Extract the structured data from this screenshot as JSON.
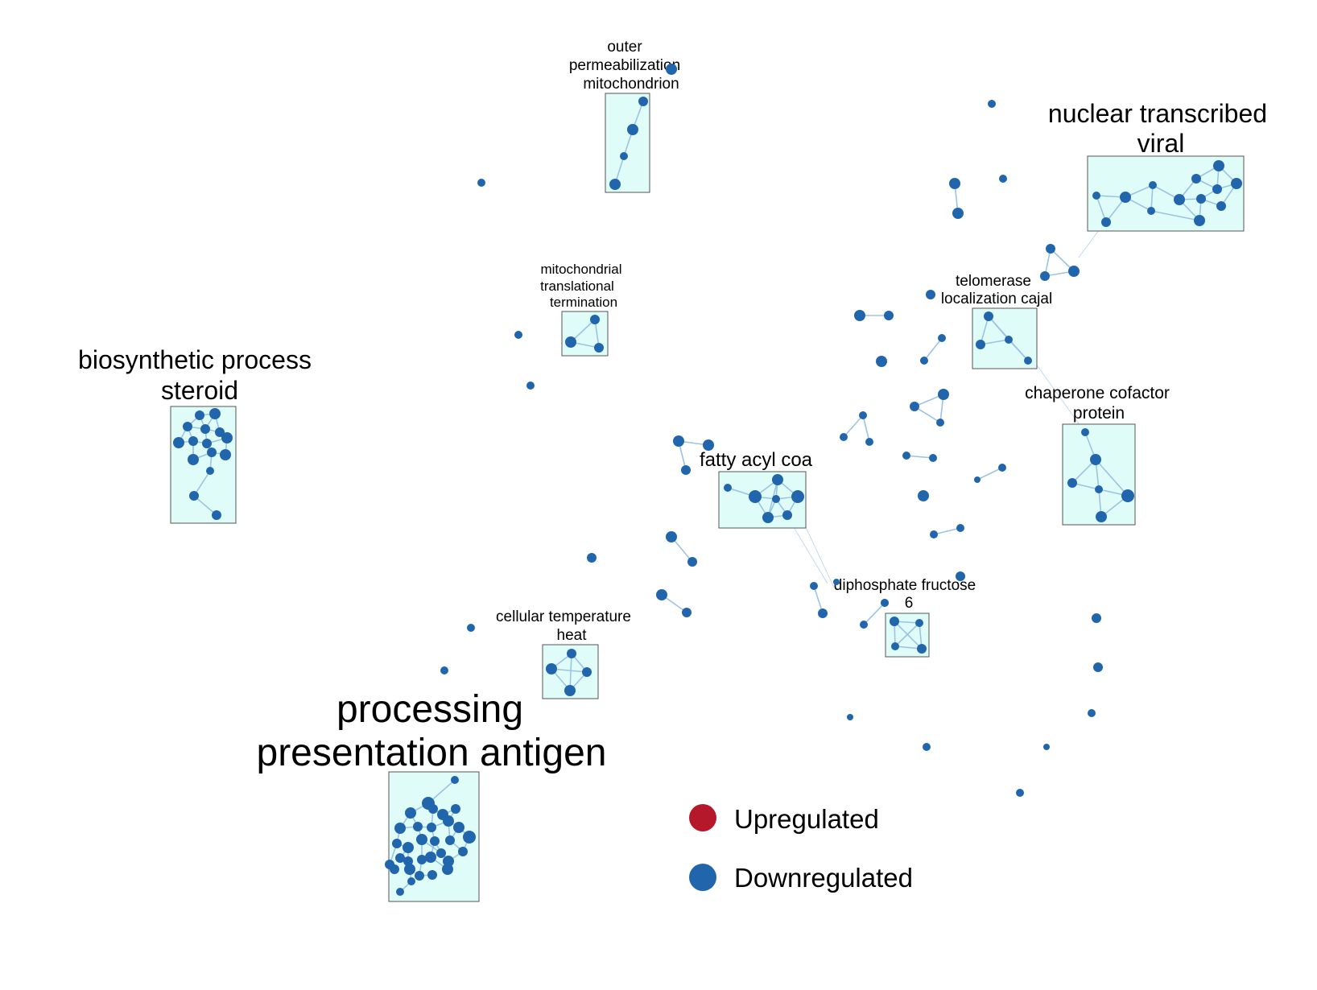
{
  "colors": {
    "upregulated": "#b5182b",
    "downregulated": "#2166ac"
  },
  "clusters": [
    {
      "id": "outer",
      "label_lines": [
        "outer",
        "permeabilization",
        "mitochondrion"
      ]
    },
    {
      "id": "viral",
      "label_lines": [
        "nuclear transcribed",
        "viral"
      ]
    },
    {
      "id": "mito-term",
      "label_lines": [
        "mitochondrial",
        "translational",
        "termination"
      ]
    },
    {
      "id": "telomerase",
      "label_lines": [
        "telomerase",
        "localization cajal"
      ]
    },
    {
      "id": "steroid",
      "label_lines": [
        "biosynthetic process",
        "steroid"
      ]
    },
    {
      "id": "chaperone",
      "label_lines": [
        "chaperone cofactor",
        "protein"
      ]
    },
    {
      "id": "fatty",
      "label_lines": [
        "fatty acyl coa"
      ]
    },
    {
      "id": "fructose",
      "label_lines": [
        "diphosphate fructose",
        "6"
      ]
    },
    {
      "id": "heat",
      "label_lines": [
        "cellular temperature",
        "heat"
      ]
    },
    {
      "id": "antigen",
      "label_lines": [
        "processing",
        "presentation antigen"
      ]
    }
  ],
  "legend": [
    {
      "label": "Upregulated",
      "color_key": "upregulated"
    },
    {
      "label": "Downregulated",
      "color_key": "downregulated"
    }
  ]
}
